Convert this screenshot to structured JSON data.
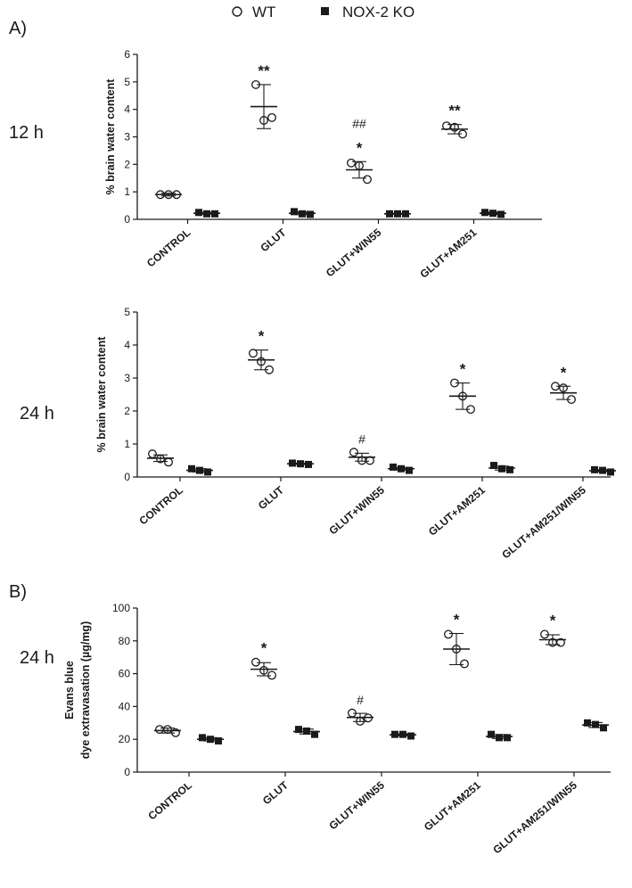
{
  "legend": {
    "wt_label": "WT",
    "ko_label": "NOX-2 KO"
  },
  "colors": {
    "axis": "#1a1a1a",
    "marker": "#1a1a1a",
    "background": "#ffffff"
  },
  "chart_data": [
    {
      "id": "A12",
      "type": "scatter",
      "panel_label": "A)",
      "row_label": "12 h",
      "ylabel": "% brain water content",
      "ylim": [
        0,
        6
      ],
      "yticks": [
        0,
        1,
        2,
        3,
        4,
        5,
        6
      ],
      "categories": [
        "CONTROL",
        "GLUT",
        "GLUT+WIN55",
        "GLUT+AM251"
      ],
      "series": [
        {
          "name": "WT",
          "marker": "open-circle",
          "points": [
            [
              0.9,
              0.9,
              0.9
            ],
            [
              4.9,
              3.6,
              3.7
            ],
            [
              2.05,
              1.95,
              1.45
            ],
            [
              3.4,
              3.35,
              3.1
            ]
          ],
          "mean": [
            0.9,
            4.1,
            1.8,
            3.28
          ],
          "sd": [
            0.05,
            0.8,
            0.3,
            0.17
          ],
          "annotations": [
            "",
            "**",
            "*",
            "**"
          ],
          "annotations2": [
            "",
            "",
            "##",
            ""
          ]
        },
        {
          "name": "NOX-2 KO",
          "marker": "filled-square",
          "points": [
            [
              0.25,
              0.2,
              0.2
            ],
            [
              0.28,
              0.2,
              0.18
            ],
            [
              0.2,
              0.2,
              0.2
            ],
            [
              0.25,
              0.22,
              0.18
            ]
          ],
          "mean": [
            0.22,
            0.22,
            0.2,
            0.22
          ],
          "sd": [
            0.03,
            0.05,
            0.02,
            0.04
          ],
          "annotations": [
            "",
            "",
            "",
            ""
          ],
          "annotations2": [
            "",
            "",
            "",
            ""
          ]
        }
      ]
    },
    {
      "id": "A24",
      "type": "scatter",
      "panel_label": "",
      "row_label": "24 h",
      "ylabel": "% brain water content",
      "ylim": [
        0,
        5
      ],
      "yticks": [
        0,
        1,
        2,
        3,
        4,
        5
      ],
      "categories": [
        "CONTROL",
        "GLUT",
        "GLUT+WIN55",
        "GLUT+AM251",
        "GLUT+AM251/WIN55"
      ],
      "series": [
        {
          "name": "WT",
          "marker": "open-circle",
          "points": [
            [
              0.7,
              0.55,
              0.45
            ],
            [
              3.75,
              3.5,
              3.25
            ],
            [
              0.75,
              0.5,
              0.5
            ],
            [
              2.85,
              2.45,
              2.05
            ],
            [
              2.75,
              2.7,
              2.35
            ]
          ],
          "mean": [
            0.57,
            3.55,
            0.6,
            2.45,
            2.55
          ],
          "sd": [
            0.1,
            0.3,
            0.12,
            0.4,
            0.2
          ],
          "annotations": [
            "",
            "*",
            "",
            "*",
            "*"
          ],
          "annotations2": [
            "",
            "",
            "#",
            "",
            ""
          ]
        },
        {
          "name": "NOX-2 KO",
          "marker": "filled-square",
          "points": [
            [
              0.25,
              0.2,
              0.15
            ],
            [
              0.42,
              0.4,
              0.38
            ],
            [
              0.3,
              0.25,
              0.2
            ],
            [
              0.35,
              0.25,
              0.22
            ],
            [
              0.22,
              0.2,
              0.15
            ]
          ],
          "mean": [
            0.2,
            0.4,
            0.25,
            0.27,
            0.19
          ],
          "sd": [
            0.05,
            0.02,
            0.04,
            0.06,
            0.03
          ],
          "annotations": [
            "",
            "",
            "",
            "",
            ""
          ],
          "annotations2": [
            "",
            "",
            "",
            "",
            ""
          ]
        }
      ]
    },
    {
      "id": "B24",
      "type": "scatter",
      "panel_label": "B)",
      "row_label": "24 h",
      "ylabel_lines": [
        "Evans blue",
        "dye extravasation (µg/mg)"
      ],
      "ylim": [
        0,
        100
      ],
      "yticks": [
        0,
        20,
        40,
        60,
        80,
        100
      ],
      "categories": [
        "CONTROL",
        "GLUT",
        "GLUT+WIN55",
        "GLUT+AM251",
        "GLUT+AM251/WIN55"
      ],
      "series": [
        {
          "name": "WT",
          "marker": "open-circle",
          "points": [
            [
              26,
              26,
              24
            ],
            [
              67,
              62,
              59
            ],
            [
              36,
              31,
              33
            ],
            [
              84,
              75,
              66
            ],
            [
              84,
              79,
              79
            ]
          ],
          "mean": [
            25.3,
            62.7,
            33.3,
            75,
            80.7
          ],
          "sd": [
            1.5,
            4,
            2.5,
            9.5,
            3
          ],
          "annotations": [
            "",
            "*",
            "",
            "*",
            "*"
          ],
          "annotations2": [
            "",
            "",
            "#",
            "",
            ""
          ]
        },
        {
          "name": "NOX-2 KO",
          "marker": "filled-square",
          "points": [
            [
              21,
              20,
              19
            ],
            [
              26,
              25,
              23
            ],
            [
              23,
              23,
              22
            ],
            [
              23,
              21,
              21
            ],
            [
              30,
              29,
              27
            ]
          ],
          "mean": [
            20,
            24.7,
            22.7,
            21.7,
            28.7
          ],
          "sd": [
            1,
            1.5,
            0.6,
            1.2,
            1.5
          ],
          "annotations": [
            "",
            "",
            "",
            "",
            ""
          ],
          "annotations2": [
            "",
            "",
            "",
            "",
            ""
          ]
        }
      ]
    }
  ]
}
